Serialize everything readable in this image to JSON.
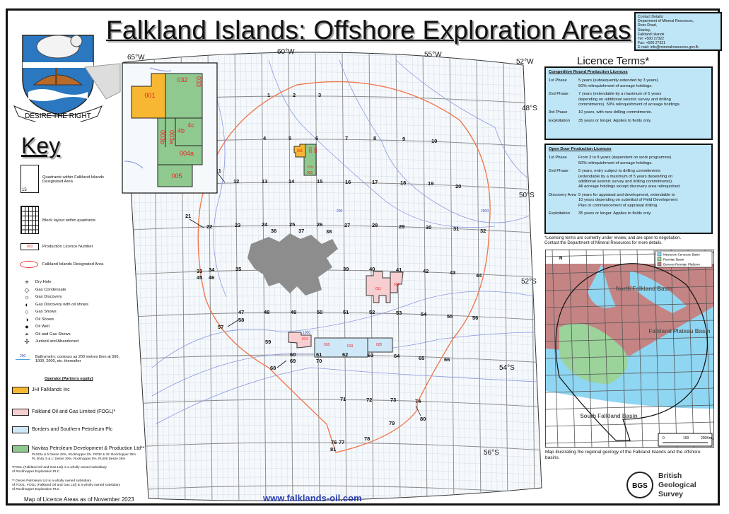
{
  "title": "Falkland Islands: Offshore Exploration Areas",
  "crest_motto": "DESIRE THE RIGHT",
  "contact": "Contact Details:\nDepartment of Mineral Resources,\nRoss Road,\nStanley,\nFalkland Islands\nTel:   +500 27322\nFax:  +500 27321\nE-mail: info@mineralresources.gov.fk",
  "key": {
    "title": "Key",
    "quadrant_example_number": "15",
    "quadrants_label": "Quadrants within Falkland Islands Designated Area",
    "block_layout_label": "Block layout within quadrants",
    "licence_example": "003",
    "licence_number_label": "Production Licence Number",
    "designated_area_label": "Falkland Islands Designated Area",
    "well_symbols": [
      {
        "icon": "dry-hole",
        "glyph": "⌖",
        "label": "Dry Hole"
      },
      {
        "icon": "gas-condensate",
        "glyph": "◇",
        "label": "Gas Condensate"
      },
      {
        "icon": "gas-discovery",
        "glyph": "☼",
        "label": "Gas Discovery"
      },
      {
        "icon": "gas-discovery-oil-shows",
        "glyph": "◐",
        "label": "Gas Discovery with oil shows"
      },
      {
        "icon": "gas-shows",
        "glyph": "○",
        "label": "Gas Shows"
      },
      {
        "icon": "oil-shows",
        "glyph": "◑",
        "label": "Oil Shows"
      },
      {
        "icon": "oil-well",
        "glyph": "●",
        "label": "Oil Well"
      },
      {
        "icon": "oil-and-gas-shows",
        "glyph": "◓",
        "label": "Oil and Gas Shows"
      },
      {
        "icon": "junked-abandoned",
        "glyph": "✢",
        "label": "Junked and Abandoned"
      }
    ],
    "bathymetry_value": "200",
    "bathymetry_label": "Bathymetry; contours as 200 metres then at 500, 1000, 2000, etc. thereafter",
    "operator_heading": "Operator (Partners equity)",
    "operators": [
      {
        "name": "JHI Falklands Inc",
        "color": "#f7b733"
      },
      {
        "name": "Falkland Oil and Gas Limited (FOGL)*",
        "color": "#f7cfd1"
      },
      {
        "name": "Borders and Southern Petroleum Plc",
        "color": "#cfe8f8"
      },
      {
        "name": "Navitas Petroleum Development & Production Ltd**",
        "color": "#8fc98f"
      }
    ],
    "navitas_partners": "PL032a & b Desire 32%, Rockhopper 3%. PI032 & 33: Rockhopper 35%\nPL 004a, b & c: Desire 30%, Rockhopper 5%. PL005 Desire 35%",
    "footnote_1": "*FOGL (Falkland Oil and Gas Ltd) is a wholly owned subsidiary\nof Rockhopper Exploration PLC",
    "footnote_2": "** Desire Petroleum Ltd is a wholly owned subsidiary\nof FOGL. FOGL (Falkland Oil and Gas Ltd) is a wholly owned subsidiary\nof Rockhopper Exploration PLC",
    "map_date": "Map of Licence Areas as of November 2023"
  },
  "map": {
    "colors": {
      "sea": "#eef6fc",
      "grid": "#8a8a8a",
      "block_grid": "#c9d6e2",
      "designated_area": "#f07a50",
      "bathymetry": "#7e8fe0",
      "land": "#8d8d8d"
    },
    "longitude_labels": [
      "65°W",
      "60°W",
      "55°W",
      "52°W"
    ],
    "latitude_labels": [
      "48°S",
      "50°S",
      "52°S",
      "54°S",
      "56°S"
    ],
    "quadrants": [
      "1",
      "2",
      "3",
      "4",
      "5",
      "6",
      "7",
      "8",
      "9",
      "10",
      "11",
      "12",
      "13",
      "14",
      "15",
      "16",
      "17",
      "18",
      "19",
      "20",
      "21",
      "22",
      "23",
      "24",
      "25",
      "26",
      "27",
      "28",
      "29",
      "30",
      "31",
      "32",
      "33",
      "34",
      "35",
      "36",
      "37",
      "38",
      "39",
      "40",
      "41",
      "42",
      "43",
      "44",
      "45",
      "46",
      "47",
      "48",
      "49",
      "50",
      "51",
      "52",
      "53",
      "54",
      "55",
      "56",
      "57",
      "58",
      "59",
      "60",
      "61",
      "62",
      "63",
      "64",
      "65",
      "66",
      "68",
      "69",
      "70",
      "71",
      "72",
      "73",
      "74",
      "76",
      "77",
      "78",
      "79",
      "80",
      "81"
    ],
    "licences": [
      {
        "id": "001",
        "operator": "JHI Falklands Inc"
      },
      {
        "id": "032",
        "operator": "Navitas"
      },
      {
        "id": "033",
        "operator": "Navitas"
      },
      {
        "id": "004a",
        "operator": "Navitas"
      },
      {
        "id": "005",
        "operator": "Navitas"
      },
      {
        "id": "011",
        "operator": "FOGL"
      },
      {
        "id": "012",
        "operator": "FOGL"
      },
      {
        "id": "014",
        "operator": "FOGL"
      },
      {
        "id": "018",
        "operator": "Borders and Southern"
      },
      {
        "id": "019",
        "operator": "Borders and Southern"
      },
      {
        "id": "020",
        "operator": "Borders and Southern"
      }
    ],
    "inset_licences": [
      "001",
      "032",
      "033",
      "003b",
      "003a",
      "4c",
      "4b",
      "004a",
      "005"
    ],
    "bathymetry_labels": [
      "200",
      "1000",
      "2000"
    ]
  },
  "licence_terms": {
    "title": "Licence Terms*",
    "competitive": {
      "heading": "Competitive Round Production Licences",
      "rows": [
        {
          "phase": "1st Phase",
          "text": "5 years (subsequently extended by 3 years).\n 50% relinquishment of acreage holdings."
        },
        {
          "phase": "2nd Phase",
          "text": "7 years (extendable by a maximum  of 5 years\ndepending on additional seismic survey and drilling\ncommitments). 50% relinquishment of acreage holdings."
        },
        {
          "phase": "3rd Phase",
          "text": " 10 years, with new drilling commitments."
        },
        {
          "phase": "Exploitation",
          "text": "35 years or longer. Applies to fields only."
        }
      ]
    },
    "open_door": {
      "heading": "Open Door Production Licences",
      "rows": [
        {
          "phase": "1st Phase",
          "text": "From 3 to 8 years (dependent on work programme).\n50% relinquishment of acreage holdings."
        },
        {
          "phase": "2nd Phase",
          "text": "5 years, entry subject to drilling commitments\n(extendable by a maximum of 5 years depending on\nadditional seismic survey and drilling commitments).\nAll acreage holdings except discovery area relinquished."
        },
        {
          "phase": "Discovery Area",
          "text": "5 years for appraisal and development, extendable to\n10 years depending on submittal of Field Development\nPlan or commencement of appraisal drilling."
        },
        {
          "phase": "Exploitation",
          "text": "35 years or longer. Applies to fields only."
        }
      ]
    },
    "note": "*Licensing terms are currently under review, and are open to negotiation.\nContact the Department of Mineral Resources for more details."
  },
  "geology_inset": {
    "legend": [
      {
        "label": "Mesozoic-Cenozoic Basin",
        "color": "#8fd6f2"
      },
      {
        "label": "Permian Basin",
        "color": "#9bd39b"
      },
      {
        "label": "Devono-Permian Platform",
        "color": "#c48484"
      }
    ],
    "basins": [
      "North Falkland Basin",
      "Falkland Plateau Basin",
      "South Falkland Basin"
    ],
    "north_arrow": "N",
    "scale_labels": [
      "0",
      "100",
      "200Km"
    ],
    "caption": "Map illustrating the regional geology of the Falkland Islands and the offshore basins."
  },
  "footer": {
    "url": "www.falklands-oil.com",
    "bgs_logo": "BGS",
    "bgs_name": [
      "British",
      "Geological",
      "Survey"
    ]
  }
}
